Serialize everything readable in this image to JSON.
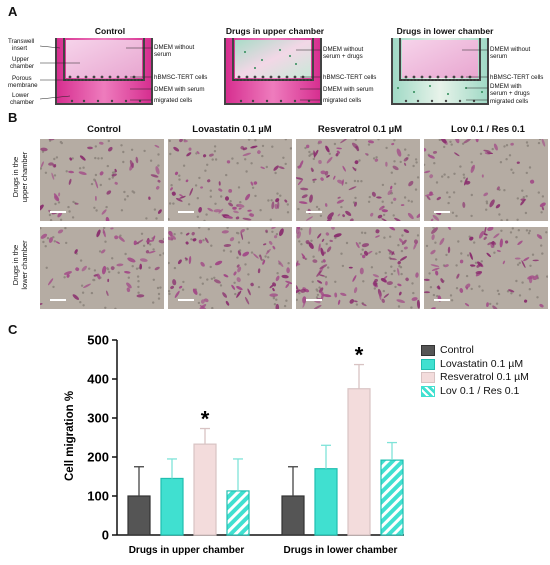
{
  "panel_a": {
    "letter": "A",
    "titles": [
      "Control",
      "Drugs in upper chamber",
      "Drugs in lower chamber"
    ],
    "left_labels": [
      "Transwell",
      "insert",
      "Upper",
      "chamber",
      "Porous",
      "membrane",
      "Lower",
      "chamber"
    ],
    "control_right": [
      "DMEM without",
      "serum",
      "hBMSC-TERT cells",
      "DMEM with serum",
      "migrated cells"
    ],
    "upper_right": [
      "DMEM without",
      "serum + drugs",
      "hBMSC-TERT cells",
      "DMEM with serum",
      "migrated cells"
    ],
    "lower_right": [
      "DMEM without",
      "serum",
      "hBMSC-TERT cells",
      "DMEM with",
      "serum + drugs",
      "migrated cells"
    ]
  },
  "panel_b": {
    "letter": "B",
    "columns": [
      "Control",
      "Lovastatin 0.1 µM",
      "Resveratrol 0.1 µM",
      "Lov 0.1 / Res 0.1"
    ],
    "rows": [
      [
        "Drugs in the",
        "upper chamber"
      ],
      [
        "Drugs in the",
        "lower chamber"
      ]
    ]
  },
  "panel_c": {
    "letter": "C",
    "significance_marker": "*"
  },
  "chart_data": {
    "type": "bar",
    "ylabel": "Cell migration %",
    "ylim": [
      0,
      500
    ],
    "yticks": [
      0,
      100,
      200,
      300,
      400,
      500
    ],
    "categories": [
      "Drugs in upper chamber",
      "Drugs in lower chamber"
    ],
    "legend_position": "top-right",
    "series": [
      {
        "name": "Control",
        "values": [
          100,
          100
        ],
        "errors": [
          75,
          75
        ],
        "color": "#555555",
        "pattern": "solid"
      },
      {
        "name": "Lovastatin  0.1 µM",
        "values": [
          145,
          170
        ],
        "errors": [
          50,
          60
        ],
        "color": "#40e0d0",
        "pattern": "solid"
      },
      {
        "name": "Resveratrol 0.1 µM",
        "values": [
          233,
          375
        ],
        "errors": [
          40,
          62
        ],
        "color": "#f3dcdc",
        "pattern": "solid"
      },
      {
        "name": "Lov 0.1 / Res 0.1",
        "values": [
          113,
          192
        ],
        "errors": [
          82,
          45
        ],
        "color": "#40e0d0",
        "pattern": "hatched"
      }
    ],
    "significant": [
      [
        2,
        0
      ],
      [
        2,
        1
      ]
    ]
  }
}
